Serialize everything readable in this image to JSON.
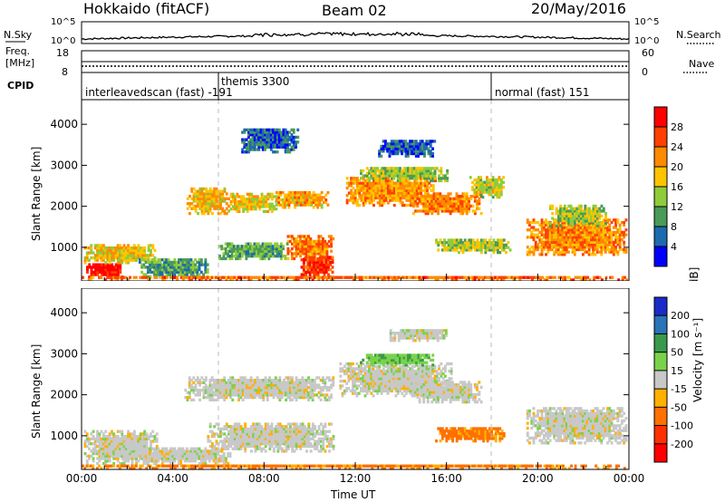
{
  "header": {
    "title": "Hokkaido (fitACF)",
    "beam": "Beam 02",
    "date": "20/May/2016"
  },
  "strip_panels": {
    "nsky_label": "N.Sky",
    "nsky_left_ticks": [
      "10^5",
      "10^0"
    ],
    "nsearch_label": "N.Search",
    "nsearch_right_ticks": [
      "10^5",
      "10^0"
    ],
    "freq_label_1": "Freq.",
    "freq_label_2": "[MHz]",
    "freq_left_ticks": [
      "18",
      "8"
    ],
    "nave_label": "Nave",
    "nave_right_ticks": [
      "60",
      "0"
    ],
    "cpid_label": "CPID",
    "cpid_segments": [
      "interleavedscan (fast) -191",
      "themis 3300",
      "normal (fast) 151"
    ]
  },
  "chart_data": [
    {
      "type": "heatmap",
      "quantity": "Power",
      "ylabel": "Slant Range [km]",
      "ylim": [
        180,
        4600
      ],
      "yticks": [
        1000,
        2000,
        3000,
        4000
      ],
      "xlim": [
        0,
        24
      ],
      "xticks": [
        "00:00",
        "04:00",
        "08:00",
        "12:00",
        "16:00",
        "20:00",
        "00:00"
      ],
      "colorbar_label": "Power [dB]",
      "colorbar_ticks": [
        "4",
        "8",
        "12",
        "16",
        "20",
        "24",
        "28"
      ],
      "colorbar_colors": [
        "#0000ff",
        "#1c6ab0",
        "#4a9a58",
        "#8fcc3a",
        "#ffc400",
        "#ff8a00",
        "#ff4000",
        "#ff0000"
      ],
      "colorbar_range": [
        0,
        32
      ],
      "regions": [
        {
          "t0": 0.2,
          "t1": 1.8,
          "r0": 250,
          "r1": 600,
          "level": 30
        },
        {
          "t0": 0.1,
          "t1": 3.2,
          "r0": 600,
          "r1": 1050,
          "level": 18
        },
        {
          "t0": 2.5,
          "t1": 5.5,
          "r0": 250,
          "r1": 700,
          "level": 10
        },
        {
          "t0": 4.6,
          "t1": 6.4,
          "r0": 1800,
          "r1": 2450,
          "level": 19
        },
        {
          "t0": 6.5,
          "t1": 8.5,
          "r0": 1850,
          "r1": 2300,
          "level": 17
        },
        {
          "t0": 8.5,
          "t1": 10.8,
          "r0": 1950,
          "r1": 2350,
          "level": 20
        },
        {
          "t0": 9.0,
          "t1": 11.0,
          "r0": 700,
          "r1": 1250,
          "level": 23
        },
        {
          "t0": 9.6,
          "t1": 11.0,
          "r0": 250,
          "r1": 750,
          "level": 27
        },
        {
          "t0": 6.0,
          "t1": 9.0,
          "r0": 700,
          "r1": 1100,
          "level": 11
        },
        {
          "t0": 11.5,
          "t1": 15.5,
          "r0": 2000,
          "r1": 2700,
          "level": 21
        },
        {
          "t0": 12.2,
          "t1": 16.0,
          "r0": 2600,
          "r1": 2950,
          "level": 14
        },
        {
          "t0": 14.5,
          "t1": 17.5,
          "r0": 1800,
          "r1": 2300,
          "level": 23
        },
        {
          "t0": 15.5,
          "t1": 18.8,
          "r0": 850,
          "r1": 1200,
          "level": 15
        },
        {
          "t0": 17.0,
          "t1": 18.5,
          "r0": 2200,
          "r1": 2700,
          "level": 16
        },
        {
          "t0": 19.5,
          "t1": 23.9,
          "r0": 800,
          "r1": 1700,
          "level": 22
        },
        {
          "t0": 20.5,
          "t1": 23.0,
          "r0": 1500,
          "r1": 2000,
          "level": 15
        },
        {
          "t0": 7.0,
          "t1": 9.5,
          "r0": 3300,
          "r1": 3900,
          "level": 6
        },
        {
          "t0": 13.0,
          "t1": 15.5,
          "r0": 3200,
          "r1": 3600,
          "level": 5
        },
        {
          "t0": 0.0,
          "t1": 24.0,
          "r0": 180,
          "r1": 300,
          "level": 24
        }
      ]
    },
    {
      "type": "heatmap",
      "quantity": "Velocity",
      "ylabel": "Slant Range [km]",
      "ylim": [
        180,
        4600
      ],
      "yticks": [
        1000,
        2000,
        3000,
        4000
      ],
      "xlim": [
        0,
        24
      ],
      "xlabel": "Time UT",
      "xticks": [
        "00:00",
        "04:00",
        "08:00",
        "12:00",
        "16:00",
        "20:00",
        "00:00"
      ],
      "colorbar_label": "Velocity [m s⁻¹]",
      "colorbar_ticks": [
        "200",
        "100",
        "50",
        "15",
        "-15",
        "-50",
        "-100",
        "-200"
      ],
      "colorbar_colors": [
        "#1a2cc8",
        "#2a73b8",
        "#3a9a4a",
        "#7ad24a",
        "#c8c8c8",
        "#ffb000",
        "#ff7000",
        "#ff3000",
        "#ff0000"
      ],
      "regions": [
        {
          "t0": 0.1,
          "t1": 3.3,
          "r0": 300,
          "r1": 1100,
          "level": 0
        },
        {
          "t0": 2.5,
          "t1": 6.5,
          "r0": 300,
          "r1": 700,
          "level": 0
        },
        {
          "t0": 4.5,
          "t1": 11.0,
          "r0": 1850,
          "r1": 2400,
          "level": 0
        },
        {
          "t0": 5.5,
          "t1": 11.0,
          "r0": 600,
          "r1": 1300,
          "level": 0
        },
        {
          "t0": 11.3,
          "t1": 16.2,
          "r0": 1950,
          "r1": 2750,
          "level": 0
        },
        {
          "t0": 12.2,
          "t1": 15.4,
          "r0": 2700,
          "r1": 3000,
          "level": 40
        },
        {
          "t0": 14.5,
          "t1": 17.5,
          "r0": 1800,
          "r1": 2300,
          "level": 0
        },
        {
          "t0": 15.5,
          "t1": 18.5,
          "r0": 850,
          "r1": 1200,
          "level": -60
        },
        {
          "t0": 19.5,
          "t1": 23.9,
          "r0": 800,
          "r1": 1700,
          "level": 0
        },
        {
          "t0": 13.5,
          "t1": 16.0,
          "r0": 3300,
          "r1": 3600,
          "level": 0
        },
        {
          "t0": 0.0,
          "t1": 24.0,
          "r0": 180,
          "r1": 260,
          "level": -60
        }
      ]
    }
  ]
}
